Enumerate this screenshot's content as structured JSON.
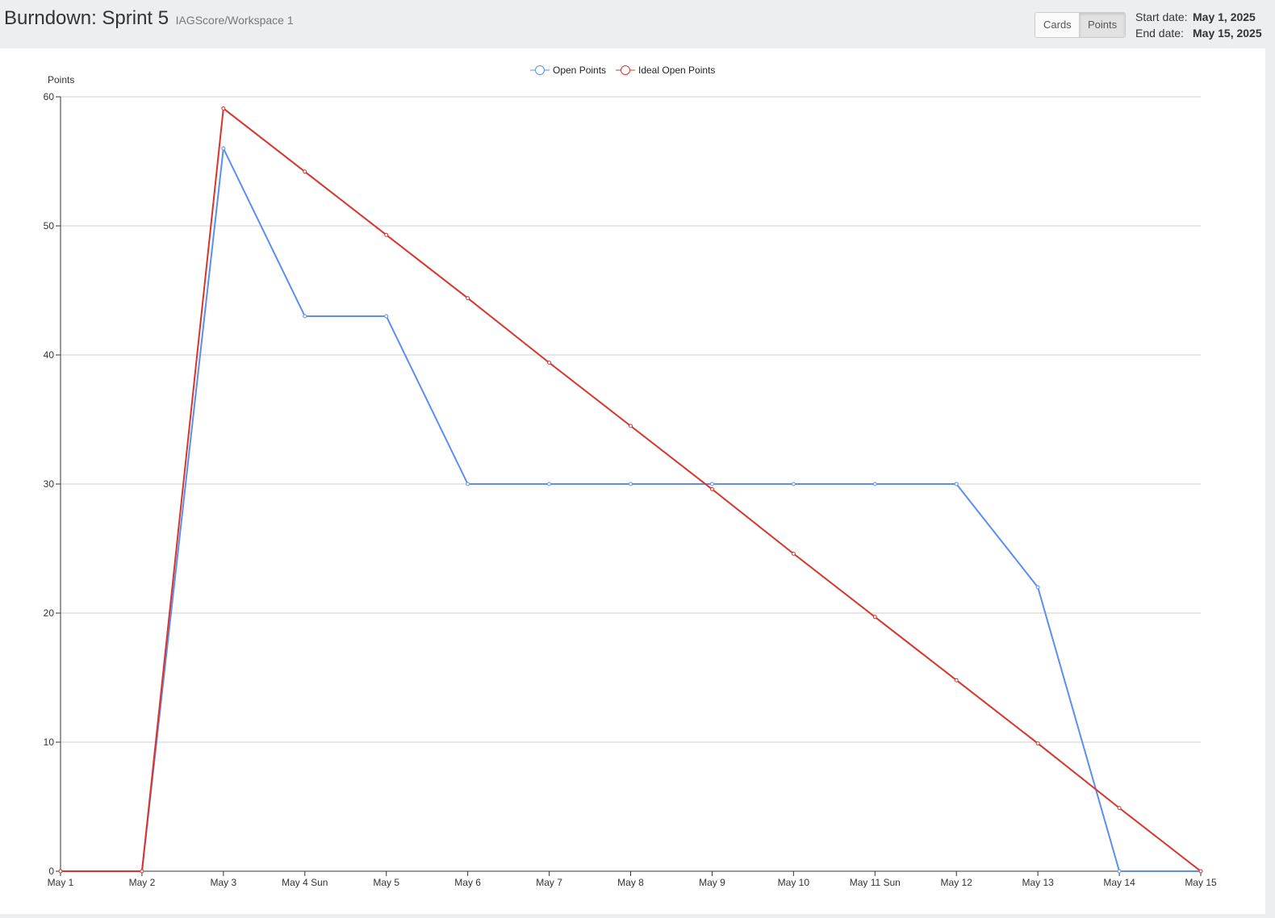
{
  "header": {
    "title": "Burndown: Sprint 5",
    "breadcrumb": "IAGScore/Workspace 1",
    "toggle": {
      "cards_label": "Cards",
      "points_label": "Points",
      "selected": "Points"
    },
    "dates": {
      "start_label": "Start date:",
      "start_value": "May 1, 2025",
      "end_label": "End date:",
      "end_value": "May 15, 2025"
    }
  },
  "colors": {
    "open_points": "#5b8ef0",
    "ideal_open_points": "#d9342b",
    "grid": "#cccccc",
    "axis": "#333333",
    "header_bg": "#eceeef"
  },
  "chart_data": {
    "type": "line",
    "ylabel": "Points",
    "xlabel": "",
    "ylim": [
      0,
      60
    ],
    "yticks": [
      0,
      10,
      20,
      30,
      40,
      50,
      60
    ],
    "grid": true,
    "legend_position": "top-center",
    "categories": [
      "May 1",
      "May 2",
      "May 3",
      "May 4 Sun",
      "May 5",
      "May 6",
      "May 7",
      "May 8",
      "May 9",
      "May 10",
      "May 11 Sun",
      "May 12",
      "May 13",
      "May 14",
      "May 15"
    ],
    "series": [
      {
        "name": "Open Points",
        "color": "#5b8ef0",
        "values": [
          0,
          0,
          56,
          43,
          43,
          30,
          30,
          30,
          30,
          30,
          30,
          30,
          22,
          0,
          0
        ]
      },
      {
        "name": "Ideal Open Points",
        "color": "#d9342b",
        "values": [
          0,
          0,
          59.1,
          54.2,
          49.3,
          44.4,
          39.4,
          34.5,
          29.6,
          24.6,
          19.7,
          14.8,
          9.9,
          4.9,
          0
        ]
      }
    ]
  }
}
